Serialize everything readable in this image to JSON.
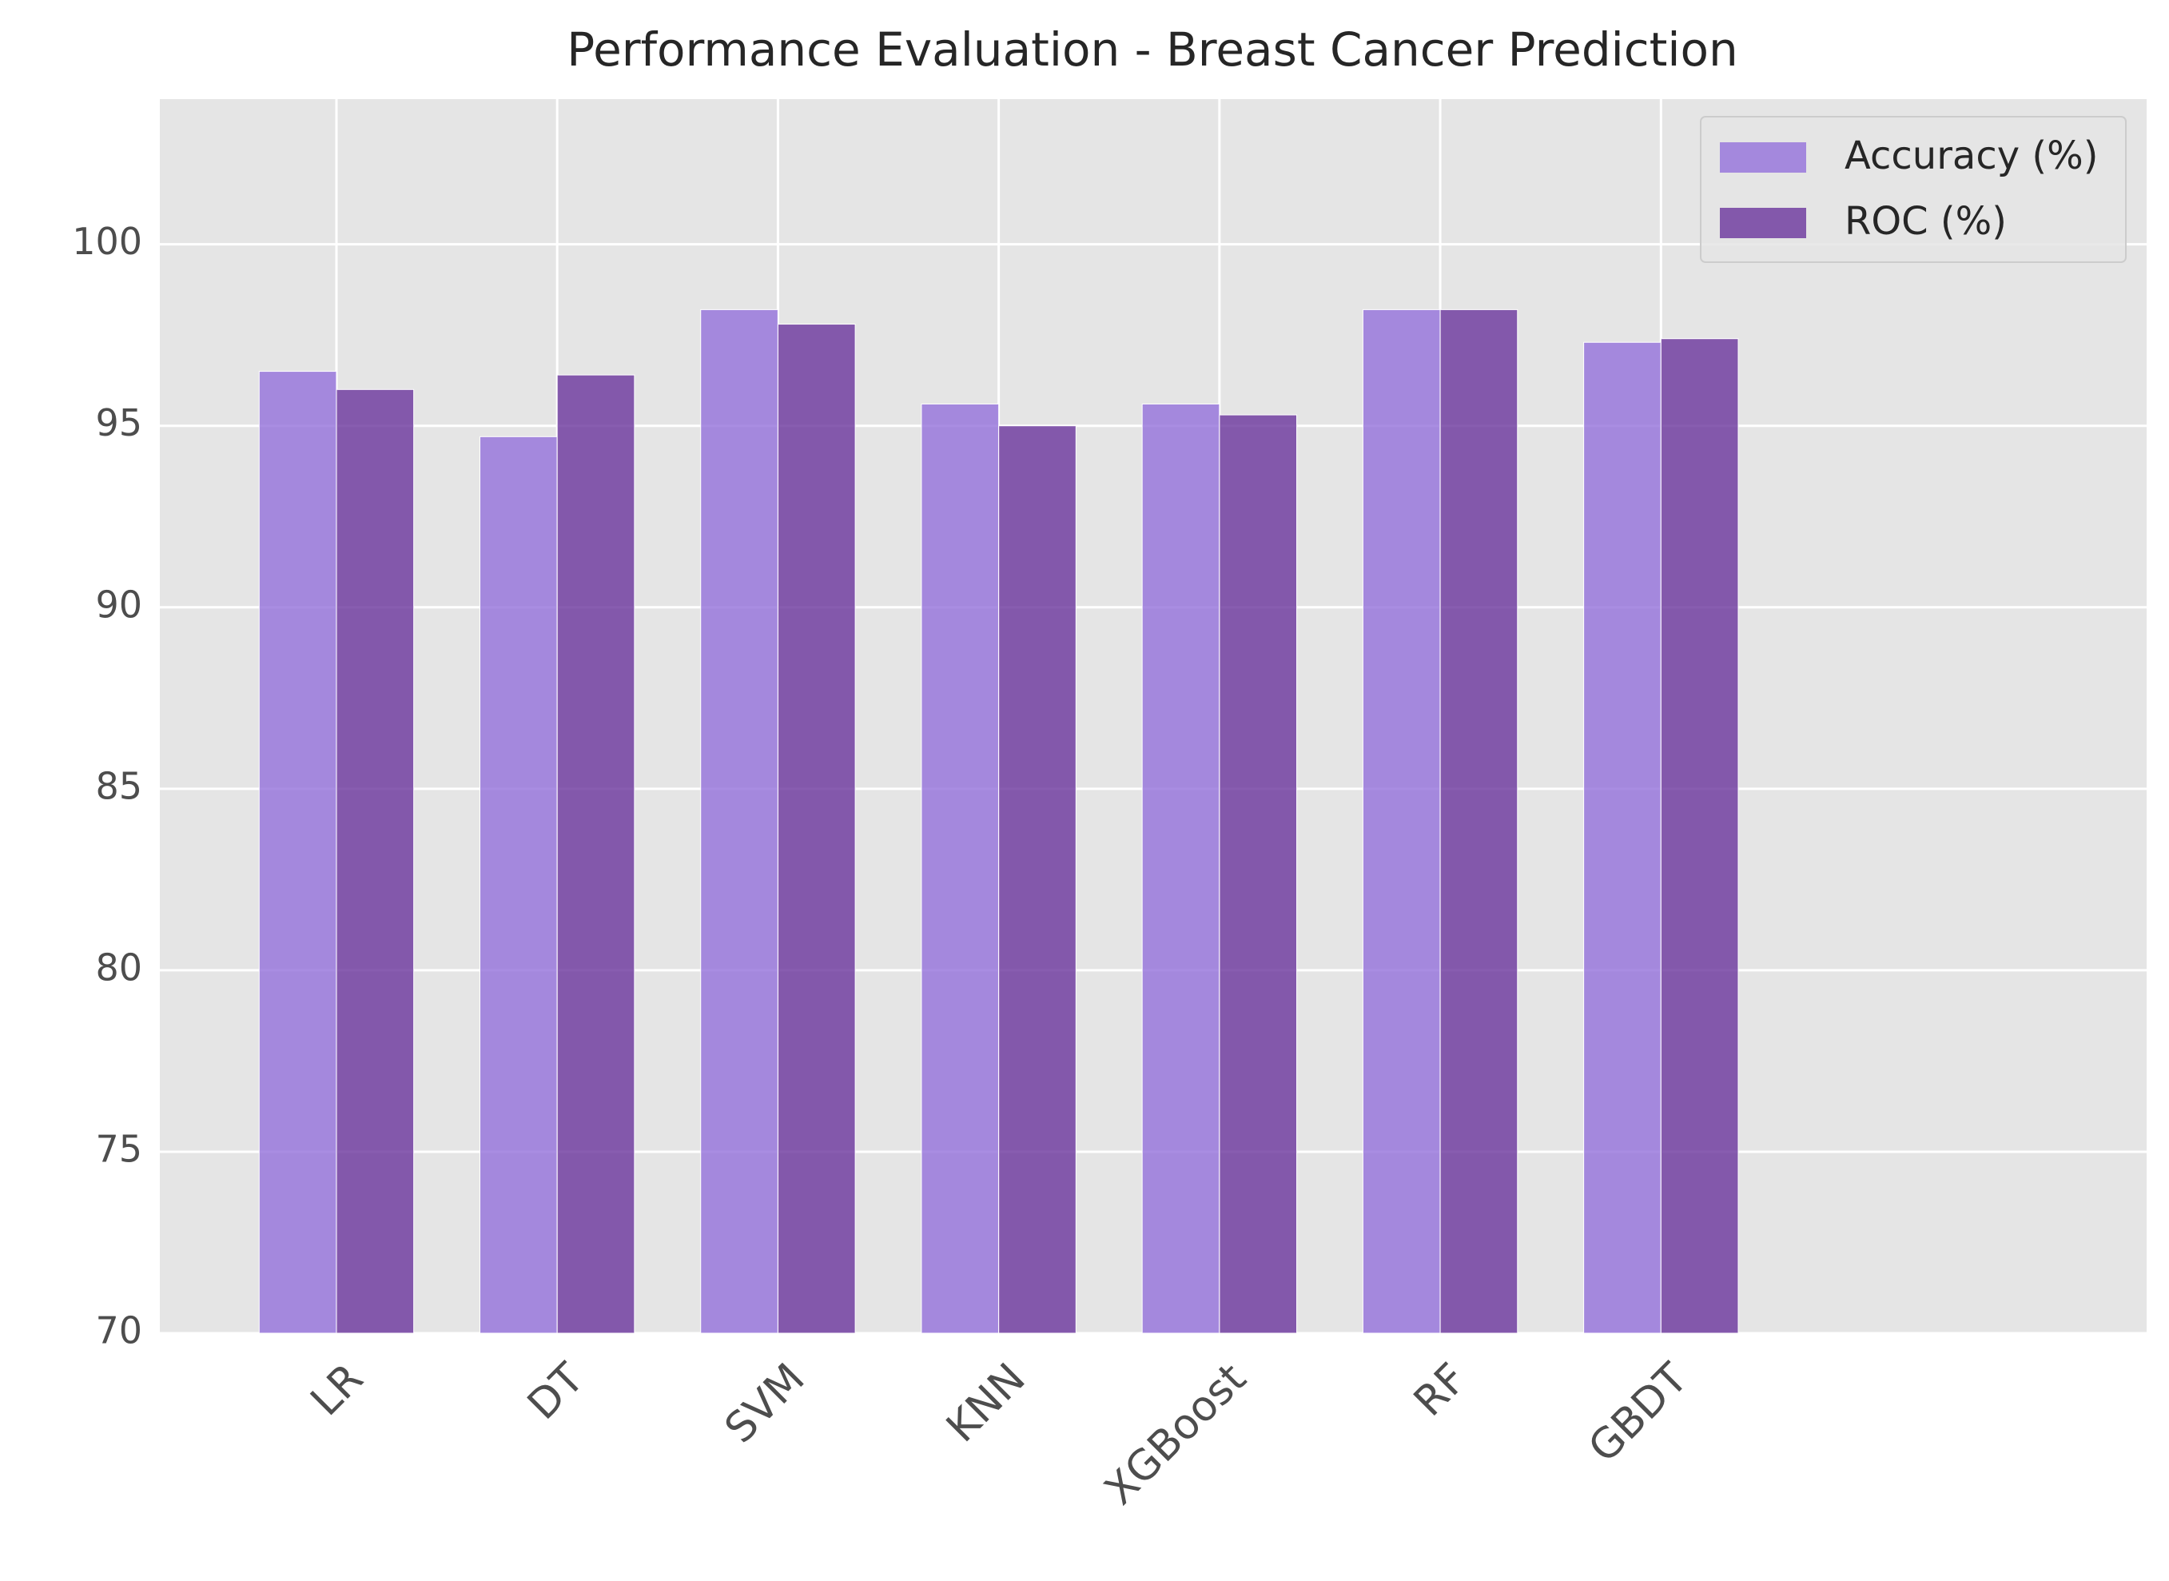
{
  "chart_data": {
    "type": "bar",
    "title": "Performance Evaluation - Breast Cancer Prediction",
    "xlabel": "",
    "ylabel": "",
    "categories": [
      "LR",
      "DT",
      "SVM",
      "KNN",
      "XGBoost",
      "RF",
      "GBDT"
    ],
    "series": [
      {
        "name": "Accuracy (%)",
        "color": "#9370DB",
        "values": [
          96.5,
          94.7,
          98.2,
          95.6,
          95.6,
          98.2,
          97.3
        ]
      },
      {
        "name": "ROC (%)",
        "color": "#6A359C",
        "values": [
          96.0,
          96.4,
          97.8,
          95.0,
          95.3,
          98.2,
          97.4
        ]
      }
    ],
    "ylim": [
      70,
      104
    ],
    "yticks": [
      70,
      75,
      80,
      85,
      90,
      95,
      100
    ],
    "xlim": [
      -0.8,
      8.2
    ],
    "x_tick_rotation": 45,
    "grid": true,
    "legend_position": "top-right",
    "background_color": "#E5E5E5",
    "grid_color": "#FFFFFF",
    "text_color": "#4D4D4D"
  }
}
